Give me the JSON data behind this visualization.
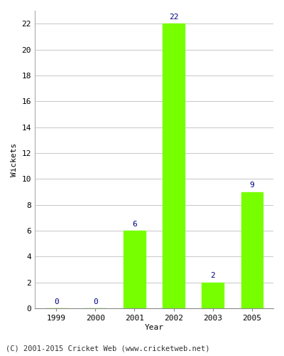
{
  "years": [
    "1999",
    "2000",
    "2001",
    "2002",
    "2003",
    "2005"
  ],
  "values": [
    0,
    0,
    6,
    22,
    2,
    9
  ],
  "bar_color": "#77ff00",
  "bar_edge_color": "#77ff00",
  "label_color": "#000080",
  "xlabel": "Year",
  "ylabel": "Wickets",
  "ylim": [
    0,
    23
  ],
  "yticks": [
    0,
    2,
    4,
    6,
    8,
    10,
    12,
    14,
    16,
    18,
    20,
    22
  ],
  "footer": "(C) 2001-2015 Cricket Web (www.cricketweb.net)",
  "background_color": "#ffffff",
  "plot_bg_color": "#ffffff",
  "grid_color": "#cccccc",
  "label_fontsize": 8,
  "axis_fontsize": 8,
  "footer_fontsize": 7.5
}
